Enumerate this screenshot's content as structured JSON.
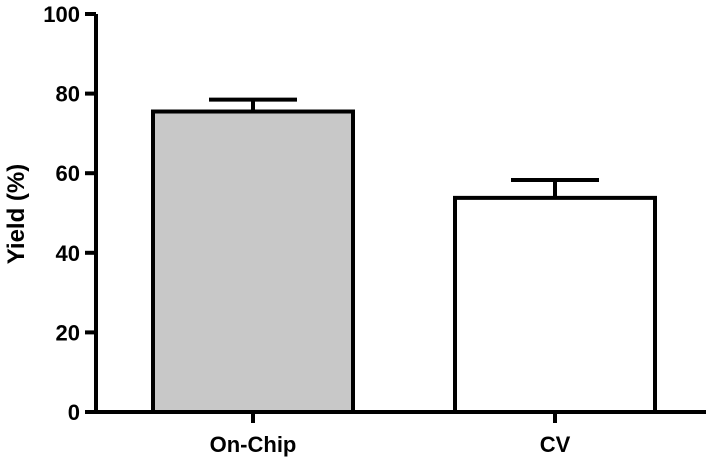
{
  "chart_data": {
    "type": "bar",
    "title": "",
    "xlabel": "",
    "ylabel": "Yield (%)",
    "ylim": [
      0,
      100
    ],
    "yticks": [
      0,
      20,
      40,
      60,
      80,
      100
    ],
    "categories": [
      "On-Chip",
      "CV"
    ],
    "values": [
      75.5,
      53.8
    ],
    "errors": [
      3.0,
      4.5
    ],
    "bar_colors": [
      "#c8c8c8",
      "#ffffff"
    ],
    "edge_color": "#000000",
    "grid": false,
    "legend": "none"
  }
}
